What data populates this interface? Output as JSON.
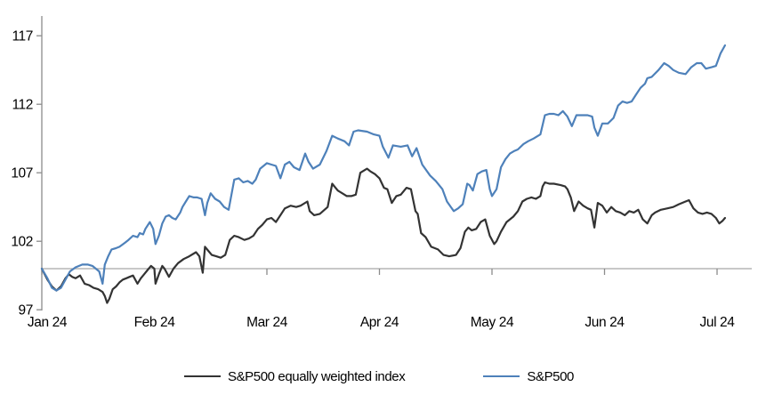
{
  "chart_data": {
    "type": "line",
    "title": "",
    "xlabel": "",
    "ylabel": "",
    "x_axis": {
      "tick_labels": [
        "Jan 24",
        "Feb 24",
        "Mar 24",
        "Apr 24",
        "May 24",
        "Jun 24",
        "Jul 24"
      ],
      "unit": "months since Jan 1 2024",
      "range_months": [
        0,
        6.31
      ]
    },
    "y_axis": {
      "ticks": [
        97,
        102,
        107,
        112,
        117
      ],
      "tick_labels": [
        "97",
        "102",
        "107",
        "112",
        "117"
      ],
      "min": 96.8,
      "max": 118.4,
      "baseline_value": 100
    },
    "grid": "single horizontal reference line at y=100",
    "legend_position": "bottom-center",
    "colors": {
      "axis": "#8c8c8c",
      "gridline": "#a6a6a6",
      "text": "#000000"
    },
    "series": [
      {
        "name": "S&P500 equally weighted index",
        "color": "#333333",
        "points": [
          [
            0,
            100
          ],
          [
            0.05,
            99.2
          ],
          [
            0.09,
            98.7
          ],
          [
            0.13,
            98.4
          ],
          [
            0.17,
            98.7
          ],
          [
            0.21,
            99.3
          ],
          [
            0.24,
            99.6
          ],
          [
            0.27,
            99.4
          ],
          [
            0.3,
            99.3
          ],
          [
            0.34,
            99.5
          ],
          [
            0.38,
            98.9
          ],
          [
            0.42,
            98.8
          ],
          [
            0.46,
            98.6
          ],
          [
            0.5,
            98.5
          ],
          [
            0.54,
            98.3
          ],
          [
            0.56,
            98
          ],
          [
            0.58,
            97.5
          ],
          [
            0.6,
            97.8
          ],
          [
            0.63,
            98.5
          ],
          [
            0.66,
            98.7
          ],
          [
            0.69,
            99
          ],
          [
            0.72,
            99.2
          ],
          [
            0.75,
            99.3
          ],
          [
            0.78,
            99.4
          ],
          [
            0.81,
            99.5
          ],
          [
            0.85,
            98.9
          ],
          [
            0.88,
            99.3
          ],
          [
            0.91,
            99.6
          ],
          [
            0.94,
            99.9
          ],
          [
            0.97,
            100.2
          ],
          [
            1,
            100
          ],
          [
            1.01,
            98.9
          ],
          [
            1.04,
            99.6
          ],
          [
            1.07,
            100.2
          ],
          [
            1.09,
            100
          ],
          [
            1.13,
            99.4
          ],
          [
            1.17,
            100
          ],
          [
            1.21,
            100.4
          ],
          [
            1.26,
            100.7
          ],
          [
            1.31,
            100.9
          ],
          [
            1.37,
            101.2
          ],
          [
            1.4,
            100.9
          ],
          [
            1.43,
            99.7
          ],
          [
            1.45,
            101.6
          ],
          [
            1.48,
            101.3
          ],
          [
            1.51,
            101
          ],
          [
            1.55,
            100.9
          ],
          [
            1.59,
            100.8
          ],
          [
            1.63,
            101
          ],
          [
            1.67,
            102.1
          ],
          [
            1.71,
            102.4
          ],
          [
            1.75,
            102.3
          ],
          [
            1.8,
            102.1
          ],
          [
            1.84,
            102.2
          ],
          [
            1.88,
            102.4
          ],
          [
            1.92,
            102.9
          ],
          [
            1.96,
            103.2
          ],
          [
            2,
            103.6
          ],
          [
            2.04,
            103.7
          ],
          [
            2.08,
            103.4
          ],
          [
            2.12,
            103.9
          ],
          [
            2.16,
            104.4
          ],
          [
            2.21,
            104.6
          ],
          [
            2.26,
            104.5
          ],
          [
            2.3,
            104.6
          ],
          [
            2.36,
            104.9
          ],
          [
            2.38,
            104.2
          ],
          [
            2.42,
            103.9
          ],
          [
            2.47,
            104
          ],
          [
            2.54,
            104.5
          ],
          [
            2.58,
            106.2
          ],
          [
            2.63,
            105.7
          ],
          [
            2.67,
            105.5
          ],
          [
            2.71,
            105.3
          ],
          [
            2.75,
            105.3
          ],
          [
            2.79,
            105.4
          ],
          [
            2.83,
            107
          ],
          [
            2.89,
            107.3
          ],
          [
            2.92,
            107.1
          ],
          [
            2.96,
            106.9
          ],
          [
            3,
            106.6
          ],
          [
            3.04,
            105.9
          ],
          [
            3.07,
            105.8
          ],
          [
            3.11,
            104.8
          ],
          [
            3.15,
            105.3
          ],
          [
            3.19,
            105.4
          ],
          [
            3.24,
            105.9
          ],
          [
            3.28,
            105.8
          ],
          [
            3.32,
            104.2
          ],
          [
            3.34,
            104
          ],
          [
            3.37,
            102.6
          ],
          [
            3.41,
            102.3
          ],
          [
            3.46,
            101.6
          ],
          [
            3.52,
            101.4
          ],
          [
            3.57,
            101
          ],
          [
            3.62,
            100.9
          ],
          [
            3.68,
            101
          ],
          [
            3.72,
            101.5
          ],
          [
            3.76,
            102.7
          ],
          [
            3.79,
            103
          ],
          [
            3.82,
            102.8
          ],
          [
            3.86,
            102.9
          ],
          [
            3.9,
            103.4
          ],
          [
            3.94,
            103.6
          ],
          [
            3.98,
            102.4
          ],
          [
            4.02,
            101.8
          ],
          [
            4.04,
            102
          ],
          [
            4.08,
            102.7
          ],
          [
            4.13,
            103.4
          ],
          [
            4.19,
            103.8
          ],
          [
            4.23,
            104.2
          ],
          [
            4.27,
            104.9
          ],
          [
            4.31,
            105.1
          ],
          [
            4.35,
            105.2
          ],
          [
            4.39,
            105.1
          ],
          [
            4.43,
            105.3
          ],
          [
            4.45,
            106
          ],
          [
            4.47,
            106.3
          ],
          [
            4.51,
            106.2
          ],
          [
            4.55,
            106.2
          ],
          [
            4.61,
            106.1
          ],
          [
            4.65,
            106
          ],
          [
            4.67,
            105.8
          ],
          [
            4.7,
            105.2
          ],
          [
            4.73,
            104.2
          ],
          [
            4.77,
            104.9
          ],
          [
            4.81,
            104.6
          ],
          [
            4.85,
            104.4
          ],
          [
            4.88,
            104.3
          ],
          [
            4.91,
            103
          ],
          [
            4.94,
            104.8
          ],
          [
            4.98,
            104.6
          ],
          [
            5.02,
            104.1
          ],
          [
            5.06,
            104.5
          ],
          [
            5.1,
            104.2
          ],
          [
            5.14,
            104.1
          ],
          [
            5.18,
            103.9
          ],
          [
            5.22,
            104.2
          ],
          [
            5.26,
            104.1
          ],
          [
            5.3,
            104.3
          ],
          [
            5.34,
            103.6
          ],
          [
            5.38,
            103.3
          ],
          [
            5.42,
            103.9
          ],
          [
            5.45,
            104.1
          ],
          [
            5.5,
            104.3
          ],
          [
            5.56,
            104.4
          ],
          [
            5.61,
            104.5
          ],
          [
            5.66,
            104.7
          ],
          [
            5.72,
            104.9
          ],
          [
            5.75,
            105
          ],
          [
            5.79,
            104.4
          ],
          [
            5.83,
            104.1
          ],
          [
            5.87,
            104
          ],
          [
            5.91,
            104.1
          ],
          [
            5.95,
            104
          ],
          [
            5.99,
            103.7
          ],
          [
            6.02,
            103.3
          ],
          [
            6.05,
            103.5
          ],
          [
            6.07,
            103.7
          ]
        ]
      },
      {
        "name": "S&P500",
        "color": "#4e81ba",
        "points": [
          [
            0,
            100
          ],
          [
            0.05,
            99.3
          ],
          [
            0.09,
            98.6
          ],
          [
            0.13,
            98.4
          ],
          [
            0.17,
            98.6
          ],
          [
            0.21,
            99.2
          ],
          [
            0.25,
            99.8
          ],
          [
            0.3,
            100.1
          ],
          [
            0.36,
            100.3
          ],
          [
            0.41,
            100.3
          ],
          [
            0.45,
            100.2
          ],
          [
            0.48,
            100
          ],
          [
            0.51,
            99.8
          ],
          [
            0.54,
            98.9
          ],
          [
            0.56,
            100.3
          ],
          [
            0.59,
            100.9
          ],
          [
            0.62,
            101.4
          ],
          [
            0.66,
            101.5
          ],
          [
            0.69,
            101.6
          ],
          [
            0.74,
            101.9
          ],
          [
            0.77,
            102.1
          ],
          [
            0.81,
            102.4
          ],
          [
            0.85,
            102.3
          ],
          [
            0.87,
            102.6
          ],
          [
            0.9,
            102.5
          ],
          [
            0.92,
            102.9
          ],
          [
            0.96,
            103.4
          ],
          [
            0.99,
            102.9
          ],
          [
            1.01,
            101.8
          ],
          [
            1.04,
            102.4
          ],
          [
            1.07,
            103.3
          ],
          [
            1.1,
            103.8
          ],
          [
            1.13,
            103.9
          ],
          [
            1.16,
            103.7
          ],
          [
            1.19,
            103.6
          ],
          [
            1.23,
            104.1
          ],
          [
            1.25,
            104.5
          ],
          [
            1.28,
            104.9
          ],
          [
            1.31,
            105.3
          ],
          [
            1.35,
            105.2
          ],
          [
            1.38,
            105.2
          ],
          [
            1.42,
            105.1
          ],
          [
            1.45,
            103.9
          ],
          [
            1.47,
            104.8
          ],
          [
            1.5,
            105.5
          ],
          [
            1.54,
            105.1
          ],
          [
            1.58,
            104.9
          ],
          [
            1.62,
            104.5
          ],
          [
            1.66,
            104.3
          ],
          [
            1.71,
            106.5
          ],
          [
            1.75,
            106.6
          ],
          [
            1.79,
            106.3
          ],
          [
            1.83,
            106.4
          ],
          [
            1.87,
            106.2
          ],
          [
            1.9,
            106.5
          ],
          [
            1.94,
            107.3
          ],
          [
            2,
            107.7
          ],
          [
            2.04,
            107.6
          ],
          [
            2.08,
            107.5
          ],
          [
            2.12,
            106.6
          ],
          [
            2.16,
            107.6
          ],
          [
            2.2,
            107.8
          ],
          [
            2.24,
            107.4
          ],
          [
            2.29,
            107.2
          ],
          [
            2.34,
            108.4
          ],
          [
            2.37,
            107.8
          ],
          [
            2.41,
            107.3
          ],
          [
            2.47,
            107.6
          ],
          [
            2.53,
            108.6
          ],
          [
            2.58,
            109.7
          ],
          [
            2.63,
            109.5
          ],
          [
            2.69,
            109.3
          ],
          [
            2.73,
            109
          ],
          [
            2.77,
            110
          ],
          [
            2.81,
            110.1
          ],
          [
            2.89,
            110
          ],
          [
            2.95,
            109.8
          ],
          [
            3,
            109.7
          ],
          [
            3.03,
            108.9
          ],
          [
            3.08,
            108.1
          ],
          [
            3.12,
            109
          ],
          [
            3.19,
            108.9
          ],
          [
            3.25,
            109
          ],
          [
            3.29,
            108.2
          ],
          [
            3.33,
            108.8
          ],
          [
            3.38,
            107.6
          ],
          [
            3.45,
            106.8
          ],
          [
            3.5,
            106.4
          ],
          [
            3.56,
            105.8
          ],
          [
            3.6,
            104.9
          ],
          [
            3.66,
            104.2
          ],
          [
            3.7,
            104.4
          ],
          [
            3.74,
            104.7
          ],
          [
            3.78,
            106.2
          ],
          [
            3.8,
            106.1
          ],
          [
            3.83,
            105.7
          ],
          [
            3.87,
            106.9
          ],
          [
            3.91,
            107.1
          ],
          [
            3.95,
            107.2
          ],
          [
            3.98,
            105.8
          ],
          [
            4,
            105.3
          ],
          [
            4.04,
            105.8
          ],
          [
            4.08,
            107.4
          ],
          [
            4.12,
            108
          ],
          [
            4.16,
            108.4
          ],
          [
            4.2,
            108.6
          ],
          [
            4.23,
            108.7
          ],
          [
            4.28,
            109.1
          ],
          [
            4.32,
            109.3
          ],
          [
            4.37,
            109.5
          ],
          [
            4.43,
            109.8
          ],
          [
            4.47,
            111.2
          ],
          [
            4.51,
            111.3
          ],
          [
            4.55,
            111.3
          ],
          [
            4.59,
            111.2
          ],
          [
            4.63,
            111.5
          ],
          [
            4.67,
            111.1
          ],
          [
            4.71,
            110.4
          ],
          [
            4.75,
            111.2
          ],
          [
            4.81,
            111.2
          ],
          [
            4.85,
            111.2
          ],
          [
            4.89,
            111.1
          ],
          [
            4.91,
            110.3
          ],
          [
            4.94,
            109.7
          ],
          [
            4.98,
            110.6
          ],
          [
            5.03,
            110.6
          ],
          [
            5.08,
            111
          ],
          [
            5.12,
            111.9
          ],
          [
            5.16,
            112.2
          ],
          [
            5.2,
            112.1
          ],
          [
            5.24,
            112.2
          ],
          [
            5.28,
            112.7
          ],
          [
            5.32,
            113.2
          ],
          [
            5.36,
            113.5
          ],
          [
            5.38,
            113.9
          ],
          [
            5.42,
            114
          ],
          [
            5.48,
            114.5
          ],
          [
            5.53,
            115
          ],
          [
            5.57,
            114.8
          ],
          [
            5.61,
            114.5
          ],
          [
            5.66,
            114.3
          ],
          [
            5.72,
            114.2
          ],
          [
            5.77,
            114.7
          ],
          [
            5.82,
            115
          ],
          [
            5.86,
            115
          ],
          [
            5.9,
            114.6
          ],
          [
            5.95,
            114.7
          ],
          [
            5.99,
            114.8
          ],
          [
            6.03,
            115.7
          ],
          [
            6.07,
            116.3
          ]
        ]
      }
    ]
  },
  "legend": {
    "items": [
      "S&P500 equally weighted index",
      "S&P500"
    ]
  }
}
